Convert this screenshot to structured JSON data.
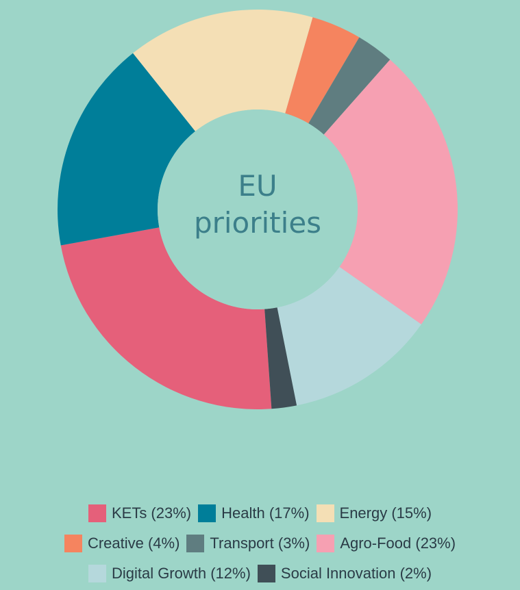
{
  "chart_data": {
    "type": "pie",
    "donut": true,
    "center_label": [
      "EU",
      "priorities"
    ],
    "start_angle_deg": 176,
    "series": [
      {
        "name": "KETs",
        "value": 23,
        "label": "KETs (23%)",
        "color": "#e5607a"
      },
      {
        "name": "Health",
        "value": 17,
        "label": "Health (17%)",
        "color": "#007e99"
      },
      {
        "name": "Energy",
        "value": 15,
        "label": "Energy (15%)",
        "color": "#f4dfb5"
      },
      {
        "name": "Creative",
        "value": 4,
        "label": "Creative (4%)",
        "color": "#f5845f"
      },
      {
        "name": "Transport",
        "value": 3,
        "label": "Transport (3%)",
        "color": "#5f7d80"
      },
      {
        "name": "Agro-Food",
        "value": 23,
        "label": "Agro-Food (23%)",
        "color": "#f6a0b2"
      },
      {
        "name": "Digital Growth",
        "value": 12,
        "label": "Digital Growth (12%)",
        "color": "#b5d8dc"
      },
      {
        "name": "Social Innovation",
        "value": 2,
        "label": "Social Innovation (2%)",
        "color": "#404f57"
      }
    ],
    "legend_rows": [
      [
        0,
        1,
        2
      ],
      [
        3,
        4,
        5
      ],
      [
        6,
        7
      ]
    ],
    "legend_position": "bottom",
    "center_color": "#9dd5c8",
    "center_text_color": "#3c7f8a"
  }
}
